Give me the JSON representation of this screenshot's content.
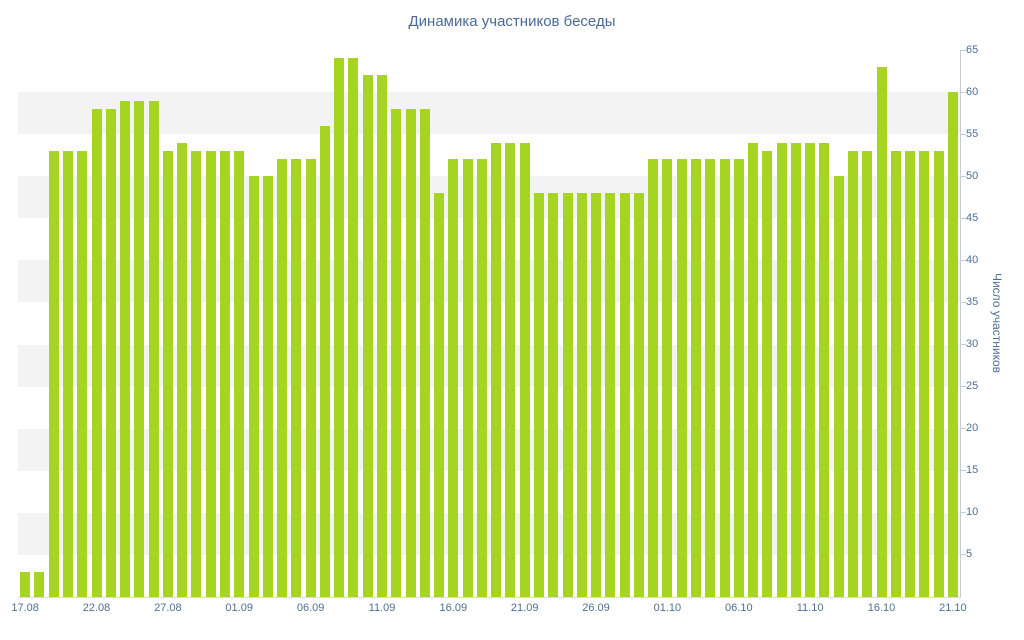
{
  "chart_data": {
    "type": "bar",
    "title": "Динамика участников беседы",
    "ylabel": "Число участников",
    "xlabel": "",
    "ylim": [
      0,
      65
    ],
    "ytick_step": 5,
    "xtick_every": 5,
    "y_axis_position": "right",
    "grid": "alternating-bands",
    "legend": "none",
    "bar_color": "#a5d422",
    "title_color": "#4a6b99",
    "axis_label_color": "#4d6f96",
    "band_color": "#f3f3f3",
    "axis_line_color": "#c5ccd5",
    "x_axis_line_color": "#d9dde2",
    "categories": [
      "17.08",
      "18.08",
      "19.08",
      "20.08",
      "21.08",
      "22.08",
      "23.08",
      "24.08",
      "25.08",
      "26.08",
      "27.08",
      "28.08",
      "29.08",
      "30.08",
      "31.08",
      "01.09",
      "02.09",
      "03.09",
      "04.09",
      "05.09",
      "06.09",
      "07.09",
      "08.09",
      "09.09",
      "10.09",
      "11.09",
      "12.09",
      "13.09",
      "14.09",
      "15.09",
      "16.09",
      "17.09",
      "18.09",
      "19.09",
      "20.09",
      "21.09",
      "22.09",
      "23.09",
      "24.09",
      "25.09",
      "26.09",
      "27.09",
      "28.09",
      "29.09",
      "30.09",
      "01.10",
      "02.10",
      "03.10",
      "04.10",
      "05.10",
      "06.10",
      "07.10",
      "08.10",
      "09.10",
      "10.10",
      "11.10",
      "12.10",
      "13.10",
      "14.10",
      "15.10",
      "16.10",
      "17.10",
      "18.10",
      "19.10",
      "20.10",
      "21.10"
    ],
    "values": [
      3,
      3,
      53,
      53,
      53,
      58,
      58,
      59,
      59,
      59,
      53,
      54,
      53,
      53,
      53,
      53,
      50,
      50,
      52,
      52,
      52,
      56,
      64,
      64,
      62,
      62,
      58,
      58,
      58,
      48,
      52,
      52,
      52,
      54,
      54,
      54,
      48,
      48,
      48,
      48,
      48,
      48,
      48,
      48,
      52,
      52,
      52,
      52,
      52,
      52,
      52,
      54,
      53,
      54,
      54,
      54,
      54,
      50,
      53,
      53,
      63,
      53,
      53,
      53,
      53,
      60
    ],
    "xtick_labels": [
      "17.08",
      "22.08",
      "27.08",
      "01.09",
      "06.09",
      "11.09",
      "16.09",
      "21.09",
      "26.09",
      "01.10",
      "06.10",
      "11.10",
      "16.10",
      "21.10"
    ],
    "ytick_labels": [
      "5",
      "10",
      "15",
      "20",
      "25",
      "30",
      "35",
      "40",
      "45",
      "50",
      "55",
      "60",
      "65"
    ]
  }
}
